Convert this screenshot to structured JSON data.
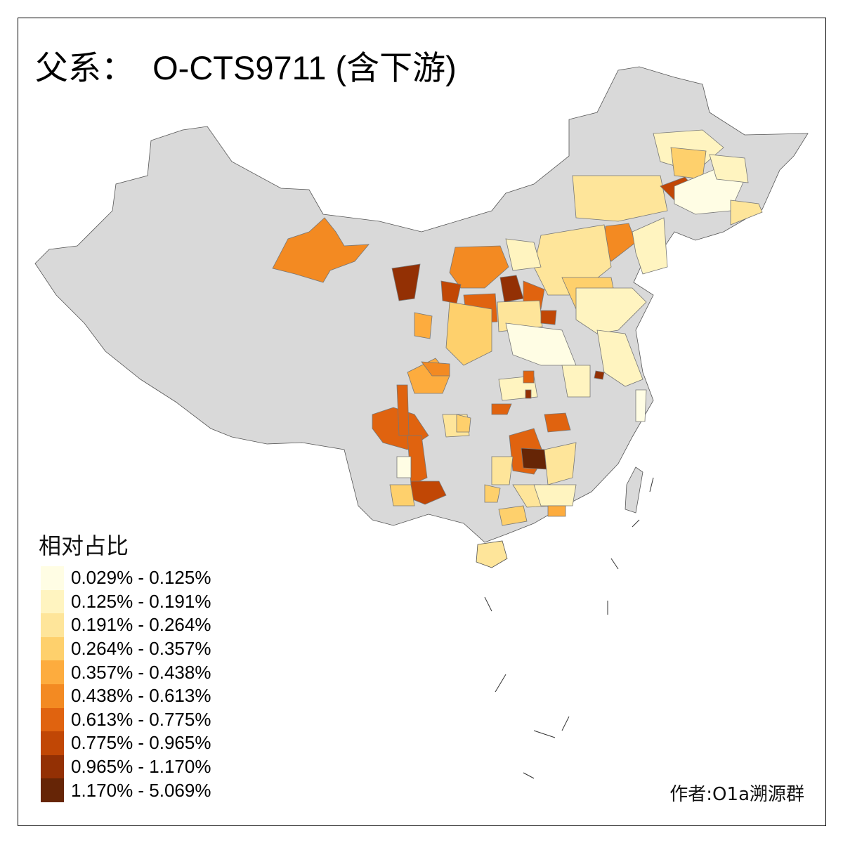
{
  "title": "父系：  O-CTS9711 (含下游)",
  "legend": {
    "title": "相对占比",
    "classes": [
      {
        "label": "0.029% - 0.125%",
        "color": "#fffde4"
      },
      {
        "label": "0.125% - 0.191%",
        "color": "#fff4c0"
      },
      {
        "label": "0.191% - 0.264%",
        "color": "#fee59a"
      },
      {
        "label": "0.264% - 0.357%",
        "color": "#fed06c"
      },
      {
        "label": "0.357% - 0.438%",
        "color": "#fdac3e"
      },
      {
        "label": "0.438% - 0.613%",
        "color": "#f38a22"
      },
      {
        "label": "0.613% - 0.775%",
        "color": "#e0630f"
      },
      {
        "label": "0.775% - 0.965%",
        "color": "#c14705"
      },
      {
        "label": "0.965% - 1.170%",
        "color": "#933004"
      },
      {
        "label": "1.170% - 5.069%",
        "color": "#662506"
      }
    ]
  },
  "no_data_color": "#d9d9d9",
  "author": "作者:O1a溯源群"
}
